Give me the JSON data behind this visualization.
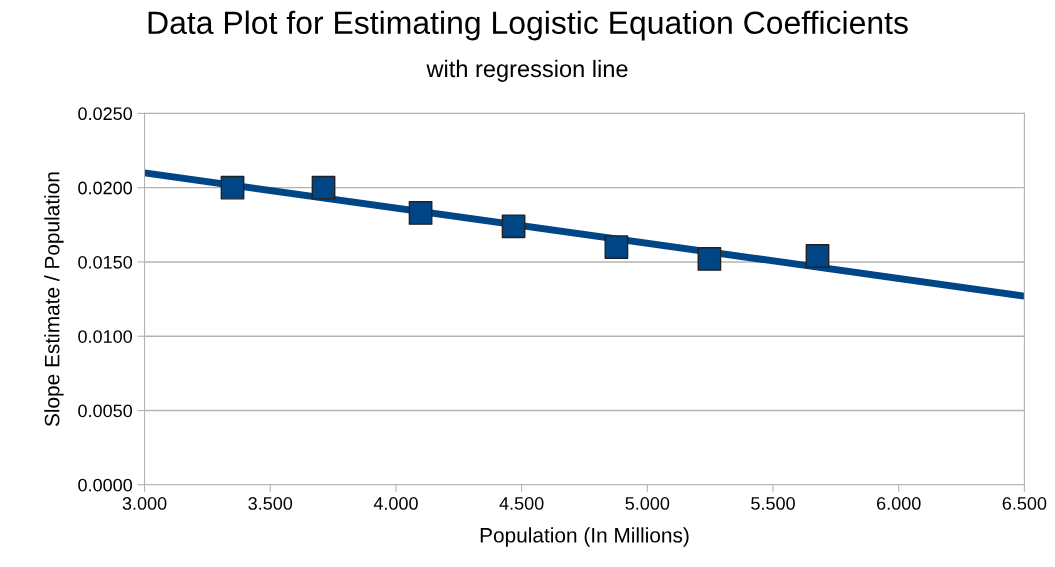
{
  "chart_data": {
    "type": "scatter",
    "title": "Data Plot for Estimating Logistic Equation Coefficients",
    "subtitle": "with regression line",
    "xlabel": "Population (In Millions)",
    "ylabel": "Slope Estimate / Population",
    "xlim": [
      3.0,
      6.5
    ],
    "xticks": [
      {
        "value": 3.0,
        "label": "3.000"
      },
      {
        "value": 3.5,
        "label": "3.500"
      },
      {
        "value": 4.0,
        "label": "4.000"
      },
      {
        "value": 4.5,
        "label": "4.500"
      },
      {
        "value": 5.0,
        "label": "5.000"
      },
      {
        "value": 5.5,
        "label": "5.500"
      },
      {
        "value": 6.0,
        "label": "6.000"
      },
      {
        "value": 6.5,
        "label": "6.500"
      }
    ],
    "ylim": [
      0,
      0.025
    ],
    "yticks": [
      {
        "value": 0,
        "label": "0.0000"
      },
      {
        "value": 0.005,
        "label": "0.0050"
      },
      {
        "value": 0.01,
        "label": "0.0100"
      },
      {
        "value": 0.015,
        "label": "0.0150"
      },
      {
        "value": 0.02,
        "label": "0.0200"
      },
      {
        "value": 0.025,
        "label": "0.0250"
      }
    ],
    "grid": "y",
    "series": [
      {
        "color": "#004586",
        "marker": "square",
        "x": [
          3.35,
          3.712,
          4.098,
          4.468,
          4.877,
          5.247,
          5.677
        ],
        "values": [
          0.02,
          0.02,
          0.0183,
          0.0174,
          0.016,
          0.0152,
          0.0154
        ]
      },
      {
        "type": "line",
        "color": "#004586",
        "marker": "none",
        "line_style": "solid",
        "x": [
          3.0,
          6.5
        ],
        "values": [
          0.021,
          0.0127
        ]
      }
    ]
  }
}
